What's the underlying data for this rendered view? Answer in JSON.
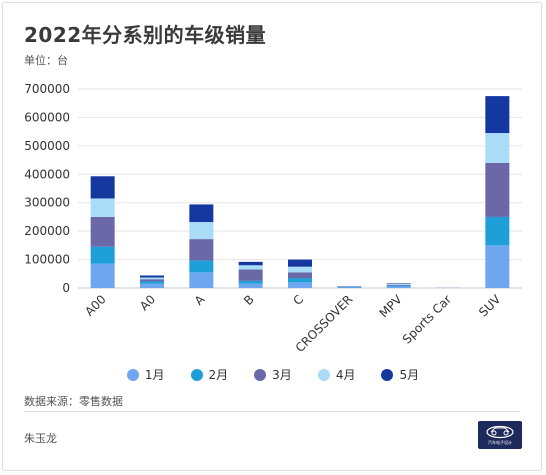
{
  "title": "2022年分系别的车级销量",
  "unit_label": "单位：台",
  "source": "数据来源：零售数据",
  "author": "朱玉龙",
  "logo_text": "汽车电子设计",
  "colors": {
    "1月": "#6ea6f0",
    "2月": "#1f9fd8",
    "3月": "#6b68a8",
    "4月": "#a8dcf7",
    "5月": "#1438a0"
  },
  "chart_data": {
    "type": "bar",
    "stacked": true,
    "categories": [
      "A00",
      "A0",
      "A",
      "B",
      "C",
      "CROSSOVER",
      "MPV",
      "Sports Car",
      "SUV"
    ],
    "series": [
      {
        "name": "1月",
        "values": [
          85000,
          15000,
          55000,
          15000,
          20000,
          2000,
          5000,
          300,
          150000
        ]
      },
      {
        "name": "2月",
        "values": [
          60000,
          8000,
          42000,
          10000,
          15000,
          1500,
          3000,
          200,
          100000
        ]
      },
      {
        "name": "3月",
        "values": [
          105000,
          8000,
          75000,
          40000,
          20000,
          1000,
          3000,
          200,
          190000
        ]
      },
      {
        "name": "4月",
        "values": [
          65000,
          6000,
          60000,
          15000,
          20000,
          1500,
          3000,
          200,
          105000
        ]
      },
      {
        "name": "5月",
        "values": [
          78000,
          7000,
          62000,
          12000,
          25000,
          1000,
          2000,
          100,
          130000
        ]
      }
    ],
    "y_ticks": [
      "0",
      "100000",
      "200000",
      "300000",
      "400000",
      "500000",
      "600000",
      "700000"
    ],
    "ylim": [
      0,
      700000
    ],
    "grid": true,
    "legend_position": "bottom"
  }
}
